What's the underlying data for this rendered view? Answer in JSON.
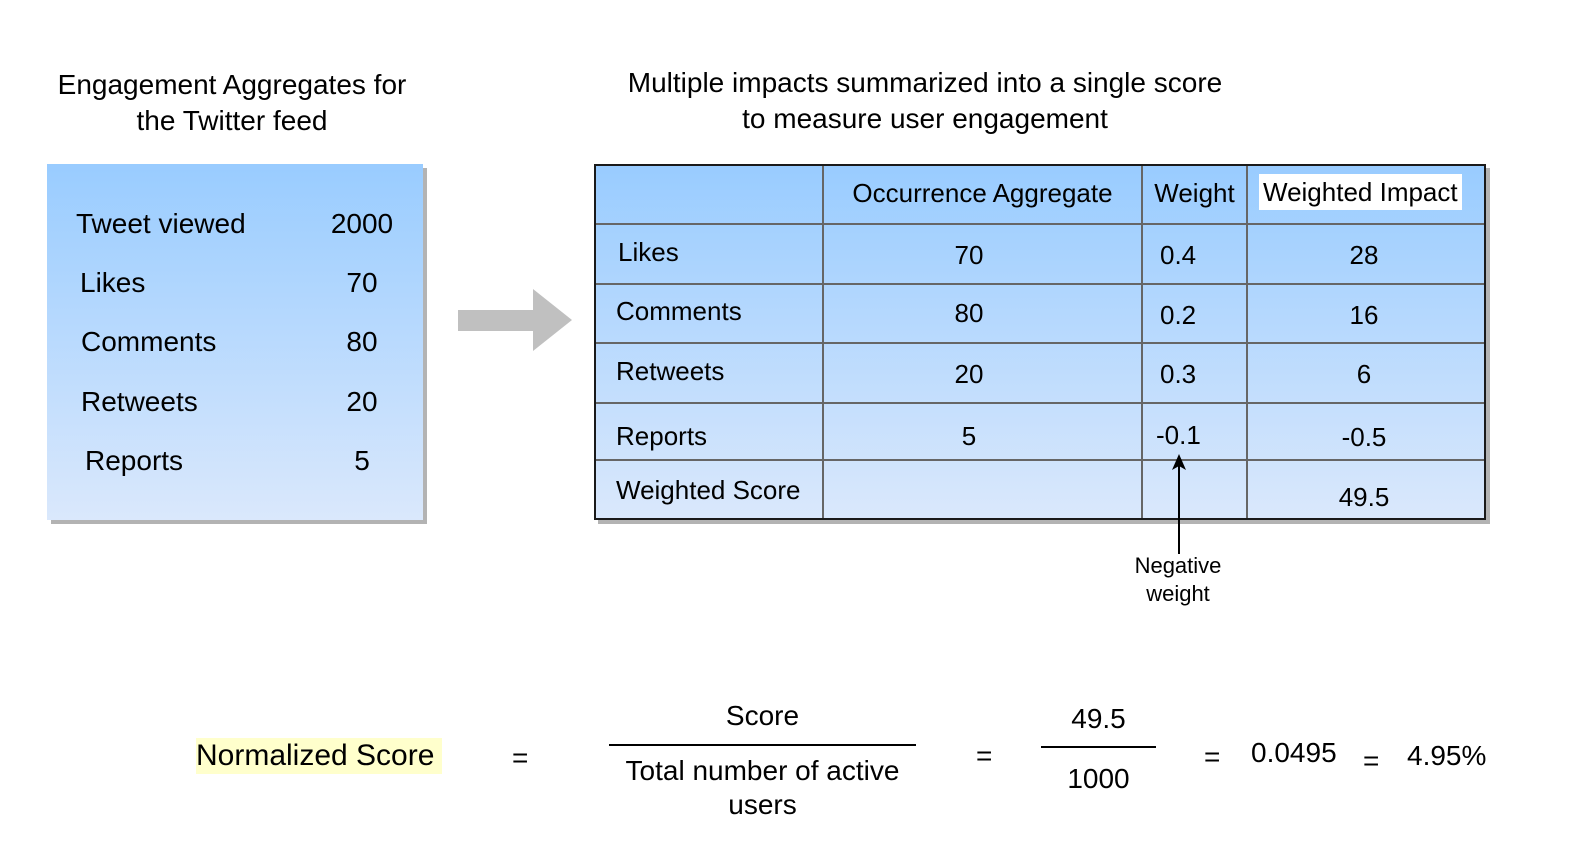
{
  "left_panel": {
    "title_line1": "Engagement Aggregates for",
    "title_line2": "the Twitter feed",
    "rows": [
      {
        "label": "Tweet viewed",
        "value": "2000"
      },
      {
        "label": "Likes",
        "value": "70"
      },
      {
        "label": "Comments",
        "value": "80"
      },
      {
        "label": "Retweets",
        "value": "20"
      },
      {
        "label": "Reports",
        "value": "5"
      }
    ]
  },
  "right_panel": {
    "title_line1": "Multiple impacts summarized into a single score",
    "title_line2": "to measure user engagement",
    "headers": {
      "col1": "",
      "col2": "Occurrence Aggregate",
      "col3": "Weight",
      "col4": "Weighted Impact"
    },
    "rows": [
      {
        "label": "Likes",
        "occurrence": "70",
        "weight": "0.4",
        "impact": "28"
      },
      {
        "label": "Comments",
        "occurrence": "80",
        "weight": "0.2",
        "impact": "16"
      },
      {
        "label": "Retweets",
        "occurrence": "20",
        "weight": "0.3",
        "impact": "6"
      },
      {
        "label": "Reports",
        "occurrence": "5",
        "weight": "-0.1",
        "impact": "-0.5"
      },
      {
        "label": "Weighted Score",
        "occurrence": "",
        "weight": "",
        "impact": "49.5"
      }
    ]
  },
  "annotation": {
    "line1": "Negative",
    "line2": "weight"
  },
  "formula": {
    "label": "Normalized Score",
    "eq1": "=",
    "numerator1": "Score",
    "denominator1_line1": "Total number of active",
    "denominator1_line2": "users",
    "eq2": "=",
    "numerator2": "49.5",
    "denominator2": "1000",
    "eq3": "=",
    "decimal_result": "0.0495",
    "eq4": "=",
    "percent_result": "4.95%"
  },
  "colors": {
    "box_top": "#99ccff",
    "box_bottom": "#dae8fc",
    "highlight": "#ffffcc",
    "arrow": "#c0c0c0"
  }
}
